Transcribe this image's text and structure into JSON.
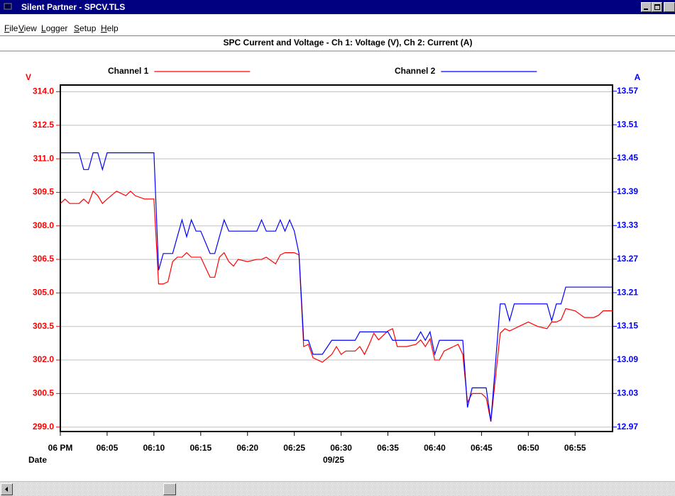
{
  "window": {
    "title": "Silent Partner - SPCV.TLS",
    "menu": [
      "File",
      "View",
      "Logger",
      "Setup",
      "Help"
    ]
  },
  "chart_data": {
    "type": "line",
    "title": "SPC Current and Voltage - Ch 1: Voltage (V), Ch 2: Current (A)",
    "ylabel": "V",
    "y2label": "A",
    "xlabel": "Date",
    "date_label": "09/25",
    "x": [
      0,
      0.5,
      1,
      2,
      2.5,
      3,
      3.5,
      4,
      4.5,
      5,
      6,
      7,
      7.5,
      8,
      9,
      10,
      10.5,
      11,
      11.5,
      12,
      12.5,
      13,
      13.5,
      14,
      14.5,
      15,
      16,
      16.5,
      17,
      17.5,
      18,
      18.5,
      19,
      20,
      21,
      21.5,
      22,
      23,
      23.5,
      24,
      24.5,
      25,
      25.5,
      26,
      26.5,
      27,
      28,
      29,
      29.5,
      30,
      30.5,
      31,
      31.5,
      32,
      32.5,
      33,
      33.5,
      34,
      35,
      35.5,
      36,
      37,
      38,
      38.5,
      39,
      39.5,
      40,
      40.5,
      41,
      42,
      42.5,
      43,
      43.5,
      44,
      45,
      45.5,
      46,
      47,
      47.5,
      48,
      48.5,
      49,
      50,
      51,
      52,
      52.5,
      53,
      53.5,
      54,
      55,
      56,
      57,
      57.5,
      58,
      59
    ],
    "series": [
      {
        "name": "Channel 1",
        "color": "#ff0000",
        "axis": "y",
        "values": [
          309.0,
          309.2,
          309.0,
          309.0,
          309.2,
          309.0,
          309.55,
          309.35,
          309.0,
          309.2,
          309.55,
          309.35,
          309.55,
          309.35,
          309.2,
          309.2,
          305.4,
          305.4,
          305.5,
          306.4,
          306.6,
          306.6,
          306.8,
          306.6,
          306.6,
          306.6,
          305.7,
          305.7,
          306.6,
          306.8,
          306.4,
          306.2,
          306.5,
          306.4,
          306.5,
          306.5,
          306.6,
          306.3,
          306.7,
          306.8,
          306.8,
          306.8,
          306.7,
          302.6,
          302.7,
          302.1,
          301.9,
          302.25,
          302.6,
          302.25,
          302.4,
          302.4,
          302.4,
          302.6,
          302.25,
          302.7,
          303.2,
          302.9,
          303.3,
          303.4,
          302.6,
          302.6,
          302.7,
          302.9,
          302.6,
          302.95,
          302.0,
          302.0,
          302.4,
          302.6,
          302.7,
          302.25,
          300.1,
          300.5,
          300.5,
          300.3,
          299.25,
          303.2,
          303.4,
          303.3,
          303.4,
          303.5,
          303.7,
          303.5,
          303.4,
          303.7,
          303.7,
          303.8,
          304.3,
          304.2,
          303.9,
          303.9,
          304.0,
          304.2,
          304.2
        ]
      },
      {
        "name": "Channel 2",
        "color": "#0000ff",
        "axis": "y2",
        "values": [
          13.46,
          13.46,
          13.46,
          13.46,
          13.43,
          13.43,
          13.46,
          13.46,
          13.43,
          13.46,
          13.46,
          13.46,
          13.46,
          13.46,
          13.46,
          13.46,
          13.25,
          13.28,
          13.28,
          13.28,
          13.31,
          13.34,
          13.31,
          13.34,
          13.32,
          13.32,
          13.28,
          13.28,
          13.31,
          13.34,
          13.32,
          13.32,
          13.32,
          13.32,
          13.32,
          13.34,
          13.32,
          13.32,
          13.34,
          13.32,
          13.34,
          13.32,
          13.28,
          13.125,
          13.125,
          13.1,
          13.1,
          13.125,
          13.125,
          13.125,
          13.125,
          13.125,
          13.125,
          13.14,
          13.14,
          13.14,
          13.14,
          13.14,
          13.14,
          13.125,
          13.125,
          13.125,
          13.125,
          13.14,
          13.125,
          13.14,
          13.1,
          13.125,
          13.125,
          13.125,
          13.125,
          13.125,
          13.005,
          13.04,
          13.04,
          13.04,
          12.98,
          13.19,
          13.19,
          13.16,
          13.19,
          13.19,
          13.19,
          13.19,
          13.19,
          13.16,
          13.19,
          13.19,
          13.22,
          13.22,
          13.22,
          13.22,
          13.22,
          13.22,
          13.22
        ]
      }
    ],
    "xlim": [
      0,
      59
    ],
    "xticks": [
      {
        "value": 0,
        "label": "06 PM"
      },
      {
        "value": 5,
        "label": "06:05"
      },
      {
        "value": 10,
        "label": "06:10"
      },
      {
        "value": 15,
        "label": "06:15"
      },
      {
        "value": 20,
        "label": "06:20"
      },
      {
        "value": 25,
        "label": "06:25"
      },
      {
        "value": 30,
        "label": "06:30"
      },
      {
        "value": 35,
        "label": "06:35"
      },
      {
        "value": 40,
        "label": "06:40"
      },
      {
        "value": 45,
        "label": "06:45"
      },
      {
        "value": 50,
        "label": "06:50"
      },
      {
        "value": 55,
        "label": "06:55"
      }
    ],
    "ylim": [
      298.8,
      314.3
    ],
    "yticks": [
      {
        "value": 299,
        "label": "299.0"
      },
      {
        "value": 300.5,
        "label": "300.5"
      },
      {
        "value": 302,
        "label": "302.0"
      },
      {
        "value": 303.5,
        "label": "303.5"
      },
      {
        "value": 305,
        "label": "305.0"
      },
      {
        "value": 306.5,
        "label": "306.5"
      },
      {
        "value": 308,
        "label": "308.0"
      },
      {
        "value": 309.5,
        "label": "309.5"
      },
      {
        "value": 311,
        "label": "311.0"
      },
      {
        "value": 312.5,
        "label": "312.5"
      },
      {
        "value": 314,
        "label": "314.0"
      }
    ],
    "y2lim": [
      12.962,
      13.581
    ],
    "y2ticks": [
      12.97,
      13.03,
      13.09,
      13.15,
      13.21,
      13.27,
      13.33,
      13.39,
      13.45,
      13.51,
      13.57
    ],
    "grid": true
  }
}
